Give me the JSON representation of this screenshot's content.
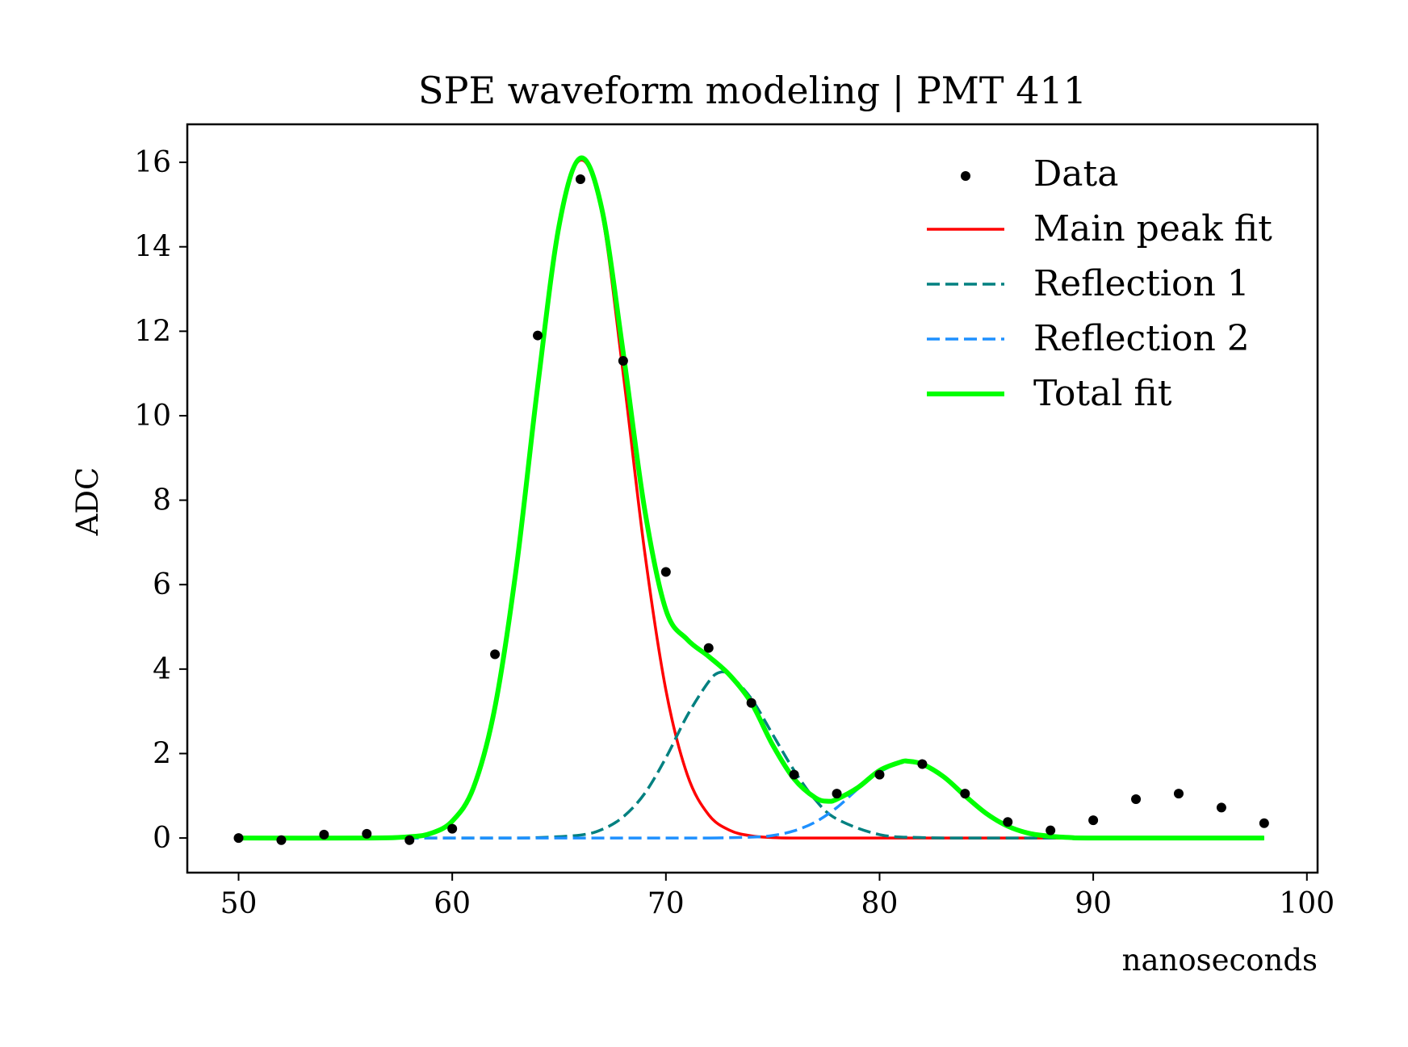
{
  "chart_data": {
    "type": "line",
    "title": "SPE waveform modeling | PMT 411",
    "xlabel": "nanoseconds",
    "ylabel": "ADC",
    "xlim": [
      47.6,
      100.5
    ],
    "ylim": [
      -0.82,
      16.9
    ],
    "xticks": [
      50,
      60,
      70,
      80,
      90,
      100
    ],
    "yticks": [
      0,
      2,
      4,
      6,
      8,
      10,
      12,
      14,
      16
    ],
    "grid": false,
    "legend_position": "top-right",
    "data_points": {
      "name": "Data",
      "color": "#000000",
      "x": [
        50,
        52,
        54,
        56,
        58,
        60,
        62,
        64,
        66,
        68,
        70,
        72,
        74,
        76,
        78,
        80,
        82,
        84,
        86,
        88,
        90,
        92,
        94,
        96,
        98
      ],
      "y": [
        0.0,
        -0.05,
        0.08,
        0.1,
        -0.05,
        0.22,
        4.35,
        11.9,
        15.6,
        11.3,
        6.3,
        4.5,
        3.2,
        1.5,
        1.05,
        1.5,
        1.75,
        1.05,
        0.38,
        0.18,
        0.42,
        0.92,
        1.05,
        0.72,
        0.35
      ]
    },
    "series": [
      {
        "name": "Main peak fit",
        "color": "#ff0000",
        "style": "solid",
        "x": [
          50,
          56,
          58,
          59,
          60,
          61,
          62,
          63,
          64,
          65,
          66,
          67,
          68,
          69,
          70,
          71,
          72,
          73,
          74,
          75,
          76,
          78,
          80,
          85,
          90,
          98
        ],
        "y": [
          0,
          0.0,
          0.03,
          0.11,
          0.4,
          1.2,
          3.1,
          6.4,
          10.7,
          14.5,
          16.05,
          14.8,
          11.0,
          6.8,
          3.5,
          1.5,
          0.55,
          0.18,
          0.05,
          0.01,
          0,
          0,
          0,
          0,
          0,
          0
        ]
      },
      {
        "name": "Reflection 1",
        "color": "#008080",
        "style": "dashed",
        "x": [
          50,
          62,
          64,
          66,
          67,
          68,
          69,
          70,
          71,
          72,
          72.5,
          73,
          74,
          75,
          76,
          77,
          78,
          80,
          82,
          84,
          86,
          88,
          98
        ],
        "y": [
          0,
          0,
          0.01,
          0.07,
          0.2,
          0.5,
          1.05,
          1.9,
          2.9,
          3.7,
          3.92,
          3.85,
          3.3,
          2.45,
          1.6,
          0.9,
          0.45,
          0.08,
          0.01,
          0,
          0,
          0,
          0
        ]
      },
      {
        "name": "Reflection 2",
        "color": "#1e90ff",
        "style": "dashed",
        "x": [
          50,
          70,
          72,
          74,
          75,
          76,
          77,
          78,
          79,
          80,
          81,
          81.3,
          82,
          83,
          84,
          85,
          86,
          87,
          88,
          89,
          90,
          98
        ],
        "y": [
          0,
          0,
          0.0,
          0.02,
          0.06,
          0.17,
          0.38,
          0.72,
          1.17,
          1.56,
          1.8,
          1.82,
          1.75,
          1.45,
          1.0,
          0.58,
          0.28,
          0.11,
          0.04,
          0.01,
          0,
          0
        ]
      },
      {
        "name": "Total fit",
        "color": "#00ff00",
        "style": "solid",
        "x": [
          50,
          56,
          58,
          59,
          60,
          61,
          62,
          63,
          64,
          65,
          66,
          67,
          68,
          69,
          70,
          71,
          72,
          73,
          74,
          75,
          76,
          77,
          77.6,
          78,
          79,
          80,
          81,
          81.3,
          82,
          83,
          84,
          85,
          86,
          87,
          88,
          89,
          90,
          98
        ],
        "y": [
          0,
          0.0,
          0.03,
          0.11,
          0.4,
          1.2,
          3.1,
          6.4,
          10.7,
          14.5,
          16.1,
          14.9,
          11.5,
          7.8,
          5.4,
          4.7,
          4.3,
          3.85,
          3.2,
          2.2,
          1.4,
          0.95,
          0.87,
          0.92,
          1.2,
          1.6,
          1.8,
          1.82,
          1.75,
          1.45,
          1.0,
          0.58,
          0.28,
          0.11,
          0.04,
          0.01,
          0,
          0
        ]
      }
    ]
  }
}
